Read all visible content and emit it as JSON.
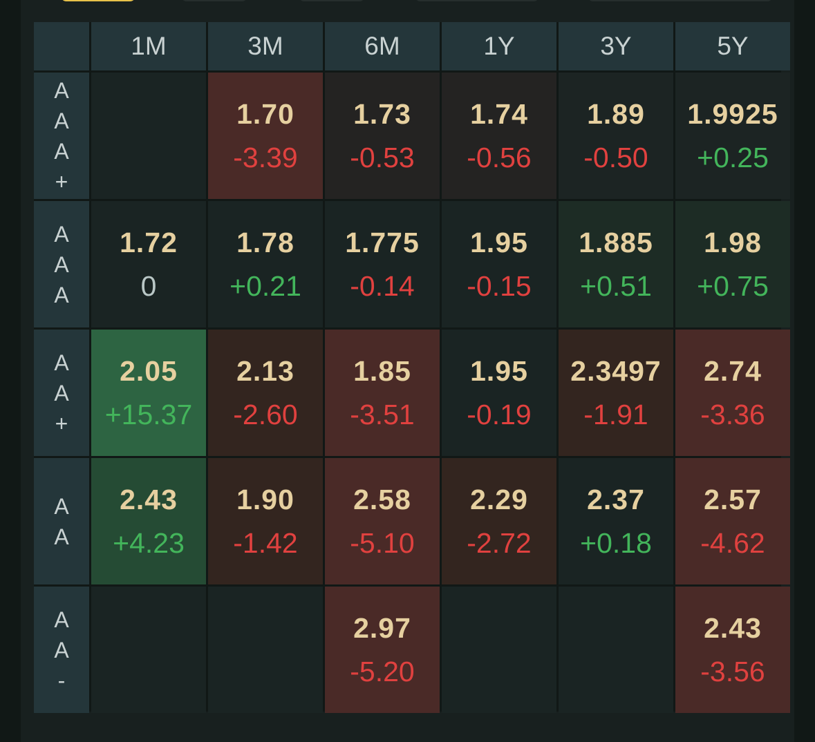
{
  "columns": [
    "1M",
    "3M",
    "6M",
    "1Y",
    "3Y",
    "5Y"
  ],
  "rows": [
    {
      "label_chars": [
        "A",
        "A",
        "A",
        "+"
      ],
      "cells": [
        null,
        {
          "value": "1.70",
          "change": "-3.39",
          "dir": "neg",
          "bg": "#4a2a27"
        },
        {
          "value": "1.73",
          "change": "-0.53",
          "dir": "neg",
          "bg": "#242322"
        },
        {
          "value": "1.74",
          "change": "-0.56",
          "dir": "neg",
          "bg": "#242322"
        },
        {
          "value": "1.89",
          "change": "-0.50",
          "dir": "neg",
          "bg": "#1c2423"
        },
        {
          "value": "1.9925",
          "change": "+0.25",
          "dir": "pos",
          "bg": "#1c2423"
        }
      ]
    },
    {
      "label_chars": [
        "A",
        "A",
        "A"
      ],
      "cells": [
        {
          "value": "1.72",
          "change": "0",
          "dir": "zero",
          "bg": "#1a2423"
        },
        {
          "value": "1.78",
          "change": "+0.21",
          "dir": "pos",
          "bg": "#1a2423"
        },
        {
          "value": "1.775",
          "change": "-0.14",
          "dir": "neg",
          "bg": "#1a2423"
        },
        {
          "value": "1.95",
          "change": "-0.15",
          "dir": "neg",
          "bg": "#1a2423"
        },
        {
          "value": "1.885",
          "change": "+0.51",
          "dir": "pos",
          "bg": "#1d2c25"
        },
        {
          "value": "1.98",
          "change": "+0.75",
          "dir": "pos",
          "bg": "#1d2c25"
        }
      ]
    },
    {
      "label_chars": [
        "A",
        "A",
        "+"
      ],
      "cells": [
        {
          "value": "2.05",
          "change": "+15.37",
          "dir": "pos",
          "bg": "#2d6442"
        },
        {
          "value": "2.13",
          "change": "-2.60",
          "dir": "neg",
          "bg": "#33251f"
        },
        {
          "value": "1.85",
          "change": "-3.51",
          "dir": "neg",
          "bg": "#4a2a27"
        },
        {
          "value": "1.95",
          "change": "-0.19",
          "dir": "neg",
          "bg": "#1a2423"
        },
        {
          "value": "2.3497",
          "change": "-1.91",
          "dir": "neg",
          "bg": "#33251f"
        },
        {
          "value": "2.74",
          "change": "-3.36",
          "dir": "neg",
          "bg": "#4a2a27"
        }
      ]
    },
    {
      "label_chars": [
        "A",
        "A"
      ],
      "cells": [
        {
          "value": "2.43",
          "change": "+4.23",
          "dir": "pos",
          "bg": "#254b34"
        },
        {
          "value": "1.90",
          "change": "-1.42",
          "dir": "neg",
          "bg": "#33251f"
        },
        {
          "value": "2.58",
          "change": "-5.10",
          "dir": "neg",
          "bg": "#4a2a27"
        },
        {
          "value": "2.29",
          "change": "-2.72",
          "dir": "neg",
          "bg": "#33251f"
        },
        {
          "value": "2.37",
          "change": "+0.18",
          "dir": "pos",
          "bg": "#1a2423"
        },
        {
          "value": "2.57",
          "change": "-4.62",
          "dir": "neg",
          "bg": "#4a2a27"
        }
      ]
    },
    {
      "label_chars": [
        "A",
        "A",
        "-"
      ],
      "cells": [
        null,
        null,
        {
          "value": "2.97",
          "change": "-5.20",
          "dir": "neg",
          "bg": "#4a2a27"
        },
        null,
        null,
        {
          "value": "2.43",
          "change": "-3.56",
          "dir": "neg",
          "bg": "#4a2a27"
        }
      ]
    }
  ],
  "empty_cell_bg": "#1a2423",
  "colors": {
    "value": "#e6d0a0",
    "negative": "#e0413f",
    "positive": "#43b55b",
    "neutral": "#b9c7c6",
    "header_bg": "#24363a",
    "active_tab": "#e8c24a"
  }
}
